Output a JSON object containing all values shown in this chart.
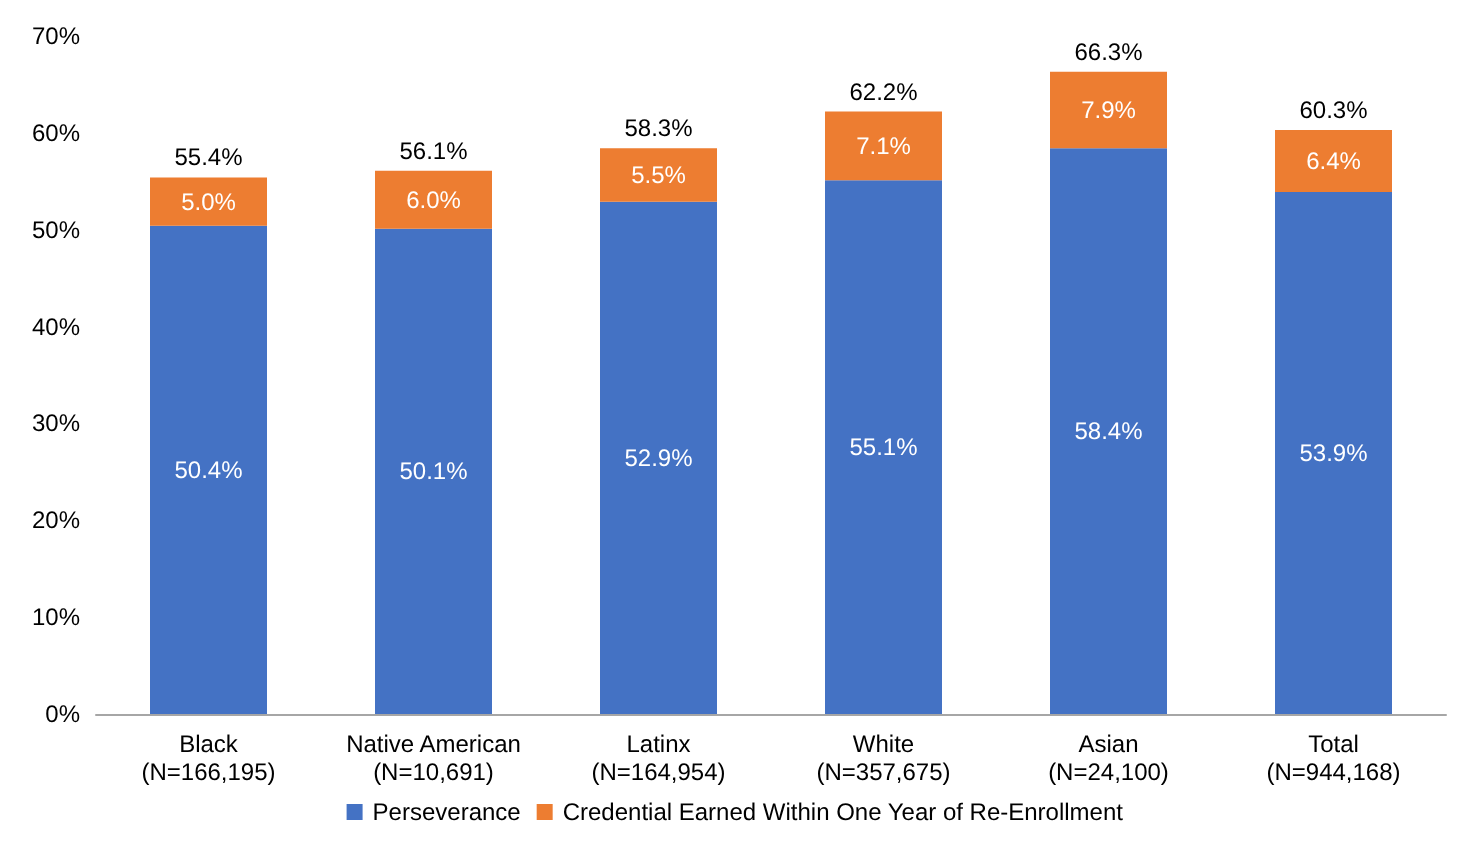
{
  "chart_data": {
    "type": "bar",
    "stacked": true,
    "categories": [
      "Black\n(N=166,195)",
      "Native American\n(N=10,691)",
      "Latinx\n(N=164,954)",
      "White\n(N=357,675)",
      "Asian\n(N=24,100)",
      "Total\n(N=944,168)"
    ],
    "series": [
      {
        "name": "Perseverance",
        "color": "#4472c4",
        "values": [
          50.4,
          50.1,
          52.9,
          55.1,
          58.4,
          53.9
        ],
        "value_labels": [
          "50.4%",
          "50.1%",
          "52.9%",
          "55.1%",
          "58.4%",
          "53.9%"
        ]
      },
      {
        "name": "Credential Earned Within One Year of Re-Enrollment",
        "color": "#ed7d31",
        "values": [
          5.0,
          6.0,
          5.5,
          7.1,
          7.9,
          6.4
        ],
        "value_labels": [
          "5.0%",
          "6.0%",
          "5.5%",
          "7.1%",
          "7.9%",
          "6.4%"
        ]
      }
    ],
    "totals": [
      "55.4%",
      "56.1%",
      "58.3%",
      "62.2%",
      "66.3%",
      "60.3%"
    ],
    "ylim": [
      0,
      70
    ],
    "yticks": [
      {
        "value": 0,
        "label": "0%"
      },
      {
        "value": 10,
        "label": "10%"
      },
      {
        "value": 20,
        "label": "20%"
      },
      {
        "value": 30,
        "label": "30%"
      },
      {
        "value": 40,
        "label": "40%"
      },
      {
        "value": 50,
        "label": "50%"
      },
      {
        "value": 60,
        "label": "60%"
      },
      {
        "value": 70,
        "label": "70%"
      }
    ],
    "grid": false,
    "legend": "bottom"
  }
}
